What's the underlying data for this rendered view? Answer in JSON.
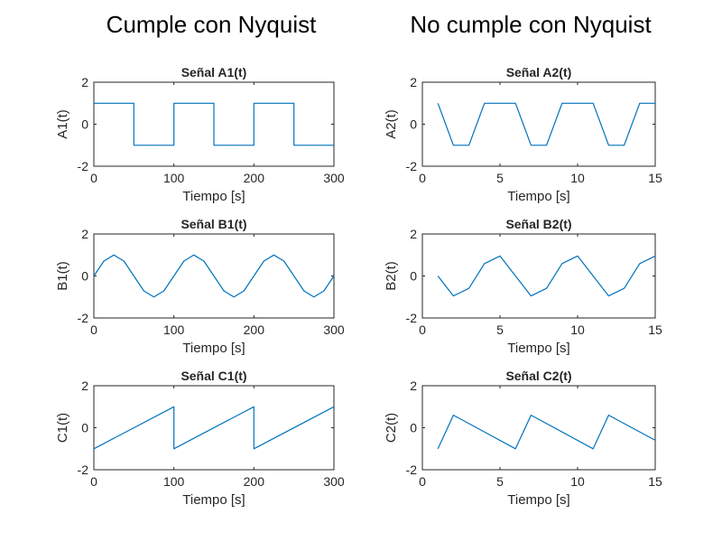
{
  "headings": {
    "left": "Cumple con Nyquist",
    "right": "No cumple con Nyquist"
  },
  "colors": {
    "line": "#0072bd",
    "axes": "#262626"
  },
  "chart_data": [
    {
      "type": "line",
      "title": "Señal A1(t)",
      "xlabel": "Tiempo [s]",
      "ylabel": "A1(t)",
      "xlim": [
        0,
        300
      ],
      "ylim": [
        -2,
        2
      ],
      "xticks": [
        0,
        100,
        200,
        300
      ],
      "yticks": [
        -2,
        0,
        2
      ],
      "grid": false,
      "series": [
        {
          "x": [
            0,
            50,
            50,
            100,
            100,
            150,
            150,
            200,
            200,
            250,
            250,
            300
          ],
          "y": [
            1,
            1,
            -1,
            -1,
            1,
            1,
            -1,
            -1,
            1,
            1,
            -1,
            -1
          ]
        }
      ]
    },
    {
      "type": "line",
      "title": "Señal A2(t)",
      "xlabel": "Tiempo [s]",
      "ylabel": "A2(t)",
      "xlim": [
        0,
        15
      ],
      "ylim": [
        -2,
        2
      ],
      "xticks": [
        0,
        5,
        10,
        15
      ],
      "yticks": [
        -2,
        0,
        2
      ],
      "grid": false,
      "series": [
        {
          "x": [
            1,
            2,
            3,
            4,
            5,
            6,
            7,
            8,
            9,
            10,
            11,
            12,
            13,
            14,
            15
          ],
          "y": [
            1,
            -1,
            -1,
            1,
            1,
            1,
            -1,
            -1,
            1,
            1,
            1,
            -1,
            -1,
            1,
            1
          ]
        }
      ]
    },
    {
      "type": "line",
      "title": "Señal B1(t)",
      "xlabel": "Tiempo [s]",
      "ylabel": "B1(t)",
      "xlim": [
        0,
        300
      ],
      "ylim": [
        -2,
        2
      ],
      "xticks": [
        0,
        100,
        200,
        300
      ],
      "yticks": [
        -2,
        0,
        2
      ],
      "grid": false,
      "series": [
        {
          "x": [
            0,
            12.5,
            25,
            37.5,
            50,
            62.5,
            75,
            87.5,
            100,
            112.5,
            125,
            137.5,
            150,
            162.5,
            175,
            187.5,
            200,
            212.5,
            225,
            237.5,
            250,
            262.5,
            275,
            287.5,
            300
          ],
          "y": [
            0,
            0.71,
            1,
            0.71,
            0,
            -0.71,
            -1,
            -0.71,
            0,
            0.71,
            1,
            0.71,
            0,
            -0.71,
            -1,
            -0.71,
            0,
            0.71,
            1,
            0.71,
            0,
            -0.71,
            -1,
            -0.71,
            0
          ]
        }
      ]
    },
    {
      "type": "line",
      "title": "Señal B2(t)",
      "xlabel": "Tiempo [s]",
      "ylabel": "B2(t)",
      "xlim": [
        0,
        15
      ],
      "ylim": [
        -2,
        2
      ],
      "xticks": [
        0,
        5,
        10,
        15
      ],
      "yticks": [
        -2,
        0,
        2
      ],
      "grid": false,
      "series": [
        {
          "x": [
            1,
            2,
            3,
            4,
            5,
            6,
            7,
            8,
            9,
            10,
            11,
            12,
            13,
            14,
            15
          ],
          "y": [
            0,
            -0.95,
            -0.59,
            0.59,
            0.95,
            0,
            -0.95,
            -0.59,
            0.59,
            0.95,
            0,
            -0.95,
            -0.59,
            0.59,
            0.95
          ]
        }
      ]
    },
    {
      "type": "line",
      "title": "Señal C1(t)",
      "xlabel": "Tiempo [s]",
      "ylabel": "C1(t)",
      "xlim": [
        0,
        300
      ],
      "ylim": [
        -2,
        2
      ],
      "xticks": [
        0,
        100,
        200,
        300
      ],
      "yticks": [
        -2,
        0,
        2
      ],
      "grid": false,
      "series": [
        {
          "x": [
            0,
            100,
            100,
            200,
            200,
            300
          ],
          "y": [
            -1,
            1,
            -1,
            1,
            -1,
            1
          ]
        }
      ]
    },
    {
      "type": "line",
      "title": "Señal C2(t)",
      "xlabel": "Tiempo [s]",
      "ylabel": "C2(t)",
      "xlim": [
        0,
        15
      ],
      "ylim": [
        -2,
        2
      ],
      "xticks": [
        0,
        5,
        10,
        15
      ],
      "yticks": [
        -2,
        0,
        2
      ],
      "grid": false,
      "series": [
        {
          "x": [
            1,
            2,
            6,
            7,
            11,
            12,
            15
          ],
          "y": [
            -1,
            0.6,
            -1,
            0.6,
            -1,
            0.6,
            -0.6
          ]
        }
      ]
    }
  ]
}
